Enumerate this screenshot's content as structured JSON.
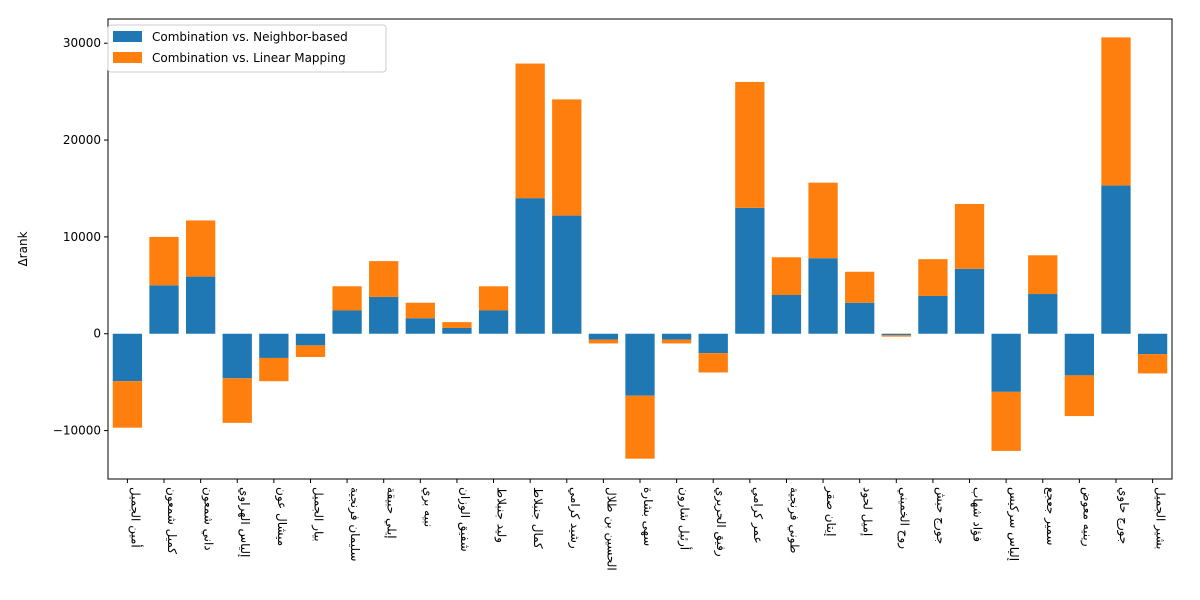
{
  "chart_data": {
    "type": "bar",
    "stacked": true,
    "title": "",
    "xlabel": "",
    "ylabel": "Δrank",
    "ylim": [
      -15000,
      32500
    ],
    "yticks": [
      -10000,
      0,
      10000,
      20000,
      30000
    ],
    "grid": false,
    "legend_position": "top-left",
    "categories": [
      "أمين الجميل",
      "كميل شمعون",
      "داني شمعون",
      "إلياس الهراوي",
      "ميشال عون",
      "بيار الجميل",
      "سليمان فرنجية",
      "إيلي حبيقة",
      "نبيه بري",
      "شفيق الوزان",
      "وليد جنبلاط",
      "كمال جنبلاط",
      "رشيد كرامي",
      "الحسين بن طلال",
      "سهى بشارة",
      "أرئيل شارون",
      "رفيق الحريري",
      "عمر كرامي",
      "طوني فرنجية",
      "إيتان صقر",
      "إميل لحود",
      "روح  الخميني",
      "جورج حبش",
      "فؤاد شهاب",
      "إلياس سركيس",
      "سمير جعجع",
      "رينيه معوض",
      "جورج حاوي",
      "بشير الجميل"
    ],
    "series": [
      {
        "name": "Combination vs. Neighbor-based",
        "color": "#1f77b4",
        "values": [
          -4900,
          5000,
          5900,
          -4600,
          -2500,
          -1200,
          2400,
          3800,
          1600,
          600,
          2400,
          14000,
          12200,
          -600,
          -6400,
          -600,
          -2000,
          13000,
          4000,
          7800,
          3200,
          -150,
          3900,
          6700,
          -6000,
          4100,
          -4300,
          15300,
          -2100
        ]
      },
      {
        "name": "Combination vs. Linear Mapping",
        "color": "#ff7f0e",
        "values": [
          -4800,
          5000,
          5800,
          -4600,
          -2400,
          -1200,
          2500,
          3700,
          1600,
          600,
          2500,
          13900,
          12000,
          -400,
          -6500,
          -400,
          -2000,
          13000,
          3900,
          7800,
          3200,
          -150,
          3800,
          6700,
          -6100,
          4000,
          -4200,
          15300,
          -2000
        ]
      }
    ]
  }
}
